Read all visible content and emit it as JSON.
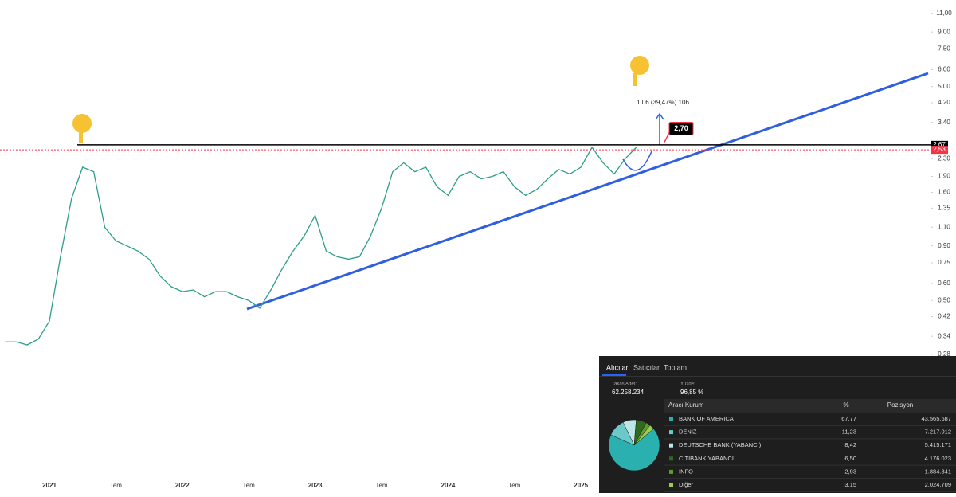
{
  "chart_data": {
    "type": "line",
    "log_scale": true,
    "color": "#2e9e8a",
    "categories": [
      null,
      null,
      null,
      null,
      "2021",
      null,
      null,
      null,
      null,
      null,
      "Tem",
      null,
      null,
      null,
      null,
      null,
      "2022",
      null,
      null,
      null,
      null,
      null,
      "Tem",
      null,
      null,
      null,
      null,
      null,
      "2023",
      null,
      null,
      null,
      null,
      null,
      "Tem",
      null,
      null,
      null,
      null,
      null,
      "2024",
      null,
      null,
      null,
      null,
      null,
      "Tem",
      null,
      null,
      null,
      null,
      null,
      "2025",
      null,
      null,
      null,
      null,
      null
    ],
    "values": [
      0.32,
      0.32,
      0.31,
      0.33,
      0.4,
      0.8,
      1.5,
      2.1,
      2.0,
      1.1,
      0.95,
      0.9,
      0.85,
      0.78,
      0.65,
      0.58,
      0.55,
      0.56,
      0.52,
      0.55,
      0.55,
      0.52,
      0.5,
      0.46,
      0.56,
      0.7,
      0.85,
      1.0,
      1.25,
      0.85,
      0.8,
      0.78,
      0.8,
      1.0,
      1.35,
      2.0,
      2.2,
      2.0,
      2.1,
      1.7,
      1.55,
      1.9,
      2.0,
      1.85,
      1.9,
      2.0,
      1.7,
      1.55,
      1.65,
      1.85,
      2.05,
      1.95,
      2.1,
      2.6,
      2.2,
      1.95,
      2.3,
      2.6
    ],
    "ylim": [
      0.074,
      12.7
    ],
    "yticks": [
      {
        "value": 11,
        "label": "11,00"
      },
      {
        "value": 9,
        "label": "9,00"
      },
      {
        "value": 7.5,
        "label": "7,50"
      },
      {
        "value": 6,
        "label": "6,00"
      },
      {
        "value": 5,
        "label": "5,00"
      },
      {
        "value": 4.2,
        "label": "4,20"
      },
      {
        "value": 3.4,
        "label": "3,40"
      },
      {
        "value": 2.3,
        "label": "2,30"
      },
      {
        "value": 1.9,
        "label": "1,90"
      },
      {
        "value": 1.6,
        "label": "1,60"
      },
      {
        "value": 1.35,
        "label": "1,35"
      },
      {
        "value": 1.1,
        "label": "1,10"
      },
      {
        "value": 0.9,
        "label": "0,90"
      },
      {
        "value": 0.75,
        "label": "0,75"
      },
      {
        "value": 0.6,
        "label": "0,60"
      },
      {
        "value": 0.5,
        "label": "0,50"
      },
      {
        "value": 0.42,
        "label": "0,42"
      },
      {
        "value": 0.34,
        "label": "0,34"
      },
      {
        "value": 0.28,
        "label": "0,28"
      }
    ],
    "price_lines": [
      {
        "value": 2.67,
        "label": "2,67",
        "color": "#000000"
      },
      {
        "value": 2.53,
        "label": "2,53",
        "color": "#f23645"
      }
    ],
    "annotations": [
      {
        "value": 2.7,
        "label": "2,70"
      },
      {
        "text": "1,06 (39,47%) 106"
      }
    ]
  },
  "panel": {
    "tabs": [
      "Alıcılar",
      "Satıcılar",
      "Toplam"
    ],
    "stats": [
      {
        "label": "Takas Adet:",
        "value": "62.258.234"
      },
      {
        "label": "Yüzde:",
        "value": "96,85 %"
      }
    ],
    "headers": [
      "Aracı Kurum",
      "%",
      "Pozisyon"
    ],
    "rows": [
      {
        "name": "BANK OF AMERICA",
        "percent": {
          "value": 67.77,
          "label": "67,77"
        },
        "position": "43.565.687",
        "color": "#2bb0b0"
      },
      {
        "name": "DENIZ",
        "percent": {
          "value": 11.23,
          "label": "11,23"
        },
        "position": "7.217.012",
        "color": "#6cc9c9"
      },
      {
        "name": "DEUTSCHE BANK (YABANCI)",
        "percent": {
          "value": 8.42,
          "label": "8,42"
        },
        "position": "5.415.171",
        "color": "#bfe6e6"
      },
      {
        "name": "CITIBANK YABANCI",
        "percent": {
          "value": 6.5,
          "label": "6,50"
        },
        "position": "4.176.023",
        "color": "#2f6b1f"
      },
      {
        "name": "INFO",
        "percent": {
          "value": 2.93,
          "label": "2,93"
        },
        "position": "1.884.341",
        "color": "#5c9e2e"
      },
      {
        "name": "Diğer",
        "percent": {
          "value": 3.15,
          "label": "3,15"
        },
        "position": "2.024.709",
        "color": "#9acd4c"
      }
    ]
  }
}
